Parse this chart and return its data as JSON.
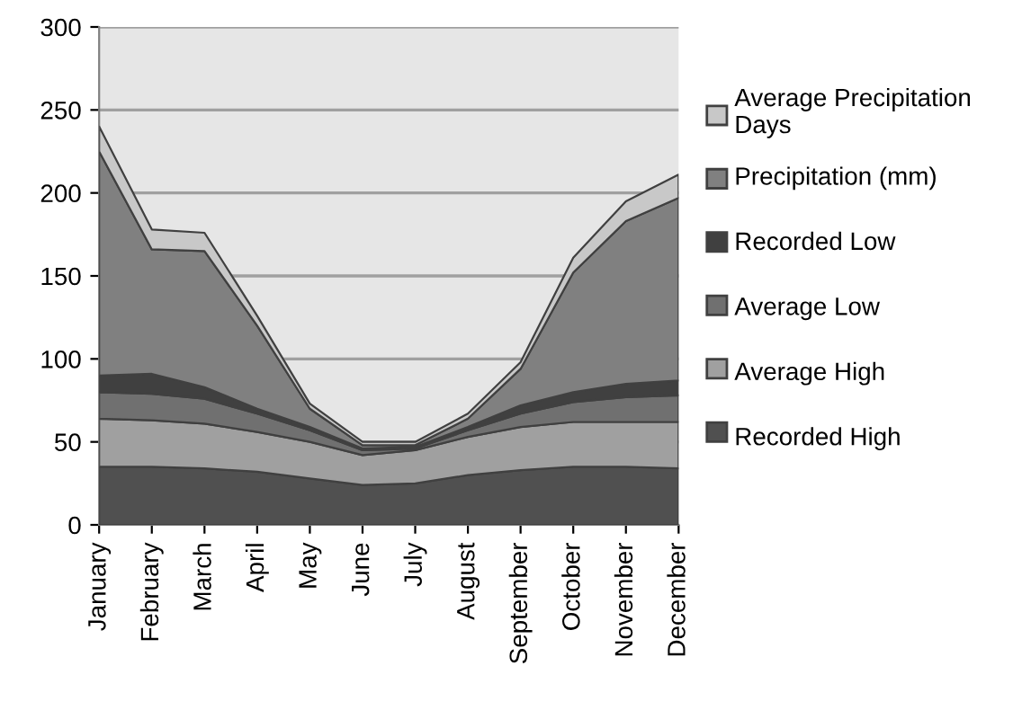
{
  "chart_data": {
    "type": "area",
    "stacked": true,
    "categories": [
      "January",
      "February",
      "March",
      "April",
      "May",
      "June",
      "July",
      "August",
      "September",
      "October",
      "November",
      "December"
    ],
    "series": [
      {
        "name": "Recorded High",
        "color": "#505050",
        "values": [
          35,
          35,
          34,
          32,
          28,
          24,
          25,
          30,
          33,
          35,
          35,
          34
        ]
      },
      {
        "name": "Average High",
        "color": "#a0a0a0",
        "values": [
          29,
          28,
          27,
          24,
          22,
          18,
          20,
          23,
          26,
          27,
          27,
          28
        ]
      },
      {
        "name": "Average Low",
        "color": "#707070",
        "values": [
          16,
          16,
          15,
          11,
          7,
          3,
          1,
          4,
          8,
          12,
          15,
          16
        ]
      },
      {
        "name": "Recorded Low",
        "color": "#404040",
        "values": [
          10,
          12,
          7,
          3,
          2,
          1,
          1,
          2,
          5,
          6,
          8,
          9
        ]
      },
      {
        "name": "Precipitation (mm)",
        "color": "#808080",
        "values": [
          135,
          75,
          82,
          50,
          11,
          2,
          1,
          5,
          22,
          72,
          98,
          110
        ]
      },
      {
        "name": "Average Precipitation Days",
        "color": "#c8c8c8",
        "values": [
          15,
          12,
          11,
          6,
          3,
          2,
          2,
          3,
          4,
          9,
          12,
          14
        ]
      }
    ],
    "ylim": [
      0,
      300
    ],
    "yticks": [
      0,
      50,
      100,
      150,
      200,
      250,
      300
    ],
    "grid": "y",
    "legend": "right"
  }
}
